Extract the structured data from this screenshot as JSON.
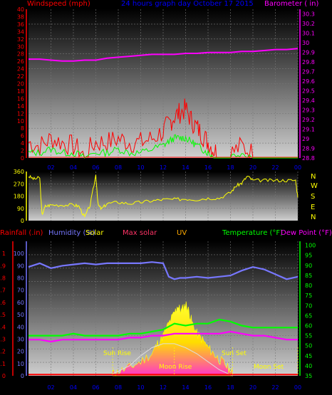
{
  "colors": {
    "windspeed": "#ff0000",
    "barometer": "#ff00ff",
    "gust": "#ff0000",
    "avg_wind": "#00ff00",
    "wind_dir": "#ffff00",
    "title": "#0000ff",
    "humidity": "#7777ff",
    "solar": "#ffff00",
    "max_solar": "#ff66aa",
    "uv": "#ffaa00",
    "temperature": "#00ff00",
    "dewpoint": "#ff00ff",
    "rainfall": "#ff0000",
    "compass": "#ffff00"
  },
  "header": {
    "left": "Windspeed (mph)",
    "title": "24 hours graph day   October 17 2015",
    "right": "Barometer ( in)"
  },
  "compass_letters": [
    "N",
    "W",
    "S",
    "E",
    "N"
  ],
  "bottom_labels": {
    "rainfall": "Rainfall (.in)",
    "humidity": "Humidity (%)",
    "solar": "Solar",
    "max_solar": "Max solar",
    "uv": "UV",
    "temperature": "Temperature (°F)",
    "dewpoint": "Dew Point (°F)"
  },
  "events": {
    "sun_rise": "Sun Rise",
    "moon_rise": "Moon Rise",
    "sun_set": "Sun Set",
    "moon_set": "Moon Set"
  },
  "chart_data": [
    {
      "type": "line",
      "title": "24 hours graph day   October 17 2015",
      "x_ticks": [
        "02",
        "04",
        "06",
        "08",
        "10",
        "12",
        "14",
        "16",
        "18",
        "20",
        "22",
        "00"
      ],
      "xlim": [
        0,
        24
      ],
      "y_left": {
        "label": "Windspeed (mph)",
        "ticks": [
          "0",
          "2",
          "4",
          "6",
          "8",
          "10",
          "12",
          "14",
          "16",
          "18",
          "20",
          "22",
          "24",
          "26",
          "28",
          "30",
          "32",
          "34",
          "36",
          "38",
          "40"
        ],
        "ylim": [
          0,
          40
        ]
      },
      "y_right": {
        "label": "Barometer ( in)",
        "ticks": [
          "28.8",
          "28.9",
          "29",
          "29.1",
          "29.2",
          "29.3",
          "29.4",
          "29.5",
          "29.6",
          "29.7",
          "29.8",
          "29.9",
          "30",
          "30.1",
          "30.2",
          "30.3"
        ],
        "ylim": [
          28.8,
          30.35
        ]
      },
      "series": [
        {
          "name": "Barometer",
          "axis": "right",
          "x": [
            0,
            1,
            2,
            3,
            4,
            5,
            6,
            7,
            8,
            9,
            10,
            11,
            12,
            13,
            14,
            15,
            16,
            17,
            18,
            19,
            20,
            21,
            22,
            23,
            24
          ],
          "values": [
            29.83,
            29.83,
            29.82,
            29.81,
            29.81,
            29.82,
            29.82,
            29.84,
            29.85,
            29.86,
            29.87,
            29.88,
            29.88,
            29.88,
            29.89,
            29.89,
            29.9,
            29.9,
            29.9,
            29.91,
            29.91,
            29.92,
            29.93,
            29.93,
            29.94
          ]
        },
        {
          "name": "Windspeed",
          "axis": "left",
          "x": [
            0,
            1,
            2,
            3,
            4,
            5,
            6,
            7,
            8,
            9,
            10,
            11,
            12,
            12.5,
            13,
            13.5,
            14,
            14.5,
            15,
            15.5,
            16,
            16.5,
            17,
            18,
            19,
            20,
            21,
            22,
            23,
            24
          ],
          "values": [
            3,
            2,
            4,
            3,
            2,
            0,
            3,
            3,
            4,
            3,
            3,
            4,
            6,
            8,
            10,
            11,
            12,
            9,
            7,
            5,
            3,
            1,
            0,
            0,
            2,
            0,
            0,
            0,
            0,
            0
          ]
        },
        {
          "name": "Average",
          "axis": "left",
          "x": [
            0,
            1,
            2,
            3,
            4,
            5,
            6,
            7,
            8,
            9,
            10,
            11,
            12,
            12.5,
            13,
            13.5,
            14,
            14.5,
            15,
            15.5,
            16,
            16.5,
            17,
            18,
            19,
            20,
            21,
            22,
            23,
            24
          ],
          "values": [
            1,
            1,
            2,
            1,
            1,
            0,
            1,
            1,
            2,
            1,
            1,
            2,
            3,
            4,
            5,
            5,
            5,
            4,
            3,
            2,
            1,
            0,
            0,
            0,
            1,
            0,
            0,
            0,
            0,
            0
          ]
        }
      ]
    },
    {
      "type": "line",
      "x_ticks": [
        "02",
        "04",
        "06",
        "08",
        "10",
        "12",
        "14",
        "16",
        "18",
        "20",
        "22",
        "00"
      ],
      "xlim": [
        0,
        24
      ],
      "y_left": {
        "ticks": [
          "0",
          "90",
          "180",
          "270",
          "360"
        ],
        "ylim": [
          0,
          360
        ]
      },
      "series": [
        {
          "name": "Wind direction",
          "x": [
            0,
            0.5,
            1,
            1.2,
            1.5,
            2,
            3,
            4,
            4.5,
            5,
            5.5,
            6,
            6.2,
            6.5,
            7,
            8,
            9,
            10,
            11,
            12,
            13,
            14,
            15,
            16,
            17,
            18,
            18.5,
            19,
            19.5,
            20,
            21,
            22,
            23,
            23.8,
            24
          ],
          "values": [
            320,
            300,
            310,
            40,
            100,
            110,
            110,
            110,
            100,
            20,
            110,
            330,
            110,
            80,
            120,
            130,
            120,
            130,
            140,
            150,
            150,
            155,
            150,
            160,
            160,
            200,
            250,
            270,
            320,
            290,
            290,
            290,
            290,
            290,
            170
          ]
        }
      ]
    },
    {
      "type": "line",
      "x_ticks": [
        "02",
        "04",
        "06",
        "08",
        "10",
        "12",
        "14",
        "16",
        "18",
        "20",
        "22",
        "00"
      ],
      "xlim": [
        0,
        24
      ],
      "y_left": {
        "label": "Rainfall (.in)",
        "ticks": [
          "0",
          "0.1",
          "0.2",
          "0.3",
          "0.4",
          "0.5",
          "0.6",
          "0.7",
          "0.8",
          "0.9",
          "1"
        ],
        "ylim": [
          0,
          1.1
        ]
      },
      "y_left2": {
        "label": "Humidity (%)",
        "ticks": [
          "0",
          "10",
          "20",
          "30",
          "40",
          "50",
          "60",
          "70",
          "80",
          "90",
          "100"
        ],
        "ylim": [
          0,
          110
        ]
      },
      "y_right": {
        "label": "Temperature (°F)",
        "ticks": [
          "35",
          "40",
          "45",
          "50",
          "55",
          "60",
          "65",
          "70",
          "75",
          "80",
          "85",
          "90",
          "95",
          "100"
        ],
        "ylim": [
          35,
          102
        ]
      },
      "series": [
        {
          "name": "Humidity",
          "x": [
            0,
            1,
            2,
            3,
            4,
            5,
            6,
            7,
            8,
            9,
            10,
            11,
            12,
            12.5,
            13,
            13.5,
            14,
            15,
            16,
            17,
            18,
            19,
            20,
            21,
            22,
            23,
            24
          ],
          "values": [
            89,
            92,
            88,
            90,
            91,
            92,
            91,
            92,
            92,
            92,
            92,
            93,
            92,
            81,
            79,
            80,
            80,
            81,
            80,
            81,
            82,
            86,
            89,
            87,
            83,
            79,
            81
          ]
        },
        {
          "name": "Temperature",
          "x": [
            0,
            1,
            2,
            3,
            4,
            5,
            6,
            7,
            8,
            9,
            10,
            11,
            12,
            13,
            14,
            15,
            16,
            17,
            18,
            19,
            20,
            21,
            22,
            23,
            24
          ],
          "values": [
            55,
            55,
            55,
            55,
            56,
            55,
            55,
            55,
            55,
            56,
            56,
            57,
            58,
            61,
            60,
            61,
            61,
            63,
            62,
            60,
            59,
            59,
            59,
            59,
            59
          ]
        },
        {
          "name": "Dew Point",
          "x": [
            0,
            1,
            2,
            3,
            4,
            5,
            6,
            7,
            8,
            9,
            10,
            11,
            12,
            13,
            14,
            15,
            16,
            17,
            18,
            19,
            20,
            21,
            22,
            23,
            24
          ],
          "values": [
            53,
            53,
            52,
            53,
            53,
            53,
            53,
            53,
            53,
            54,
            54,
            55,
            55,
            56,
            56,
            56,
            56,
            56,
            57,
            56,
            55,
            55,
            54,
            53,
            53
          ]
        },
        {
          "name": "Rainfall",
          "x": [
            0,
            24
          ],
          "values": [
            0.01,
            0.01
          ]
        },
        {
          "name": "Max solar",
          "x": [
            7.5,
            9,
            10,
            11,
            12,
            13,
            14,
            15,
            16,
            17,
            18.2
          ],
          "values": [
            36,
            40,
            45,
            49,
            51,
            51,
            49,
            46,
            42,
            38,
            35
          ]
        },
        {
          "name": "Solar",
          "x": [
            7.5,
            8,
            9,
            10,
            11,
            11.5,
            12,
            12.5,
            13,
            13.3,
            13.6,
            14,
            14.3,
            14.6,
            15,
            15.5,
            16,
            16.5,
            17,
            17.5,
            18,
            18.2
          ],
          "values": [
            35,
            36,
            38,
            41,
            45,
            50,
            54,
            60,
            65,
            69,
            66,
            70,
            66,
            60,
            55,
            52,
            48,
            45,
            42,
            40,
            36,
            35
          ]
        }
      ]
    }
  ]
}
